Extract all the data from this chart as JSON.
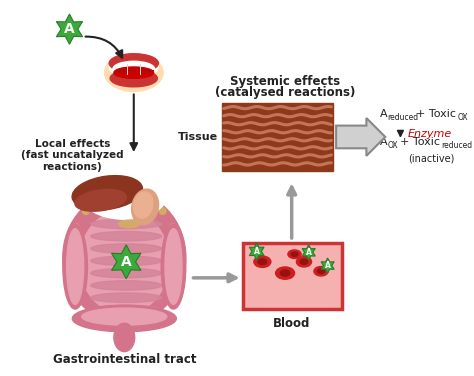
{
  "bg_color": "#ffffff",
  "figsize": [
    4.74,
    3.76
  ],
  "dpi": 100,
  "text_local_effects": "Local effects\n(fast uncatalyzed\nreactions)",
  "text_systemic_line1": "Systemic effects",
  "text_systemic_line2": "(catalysed reactions)",
  "text_tissue": "Tissue",
  "text_blood": "Blood",
  "text_gi": "Gastrointestinal tract",
  "text_a_label": "A",
  "eq_enzyme": "Enzyme",
  "eq_inactive": "(inactive)",
  "color_green_badge": "#3aaa3a",
  "color_green_dark": "#2a7a2a",
  "color_tissue_dark": "#8b3a1a",
  "color_tissue_mid": "#a84a2a",
  "color_tissue_light": "#c8725a",
  "color_tissue_stripe": "#b05040",
  "color_blood_bg": "#f5b0b0",
  "color_blood_border": "#cc3333",
  "color_rbc": "#cc2020",
  "color_gi_outer": "#d4748a",
  "color_gi_inner": "#e8a0b0",
  "color_gi_colon": "#c05070",
  "color_liver": "#7a3020",
  "color_stomach": "#d49070",
  "color_arrow_gray": "#999999",
  "color_arrow_dark": "#555555",
  "color_enzyme_red": "#cc0000",
  "color_text_dark": "#222222",
  "color_white": "#ffffff",
  "color_lip": "#cc3333",
  "color_lip_dark": "#991111",
  "color_skin": "#ffddb0",
  "color_teeth": "#f8f8f8",
  "color_gi_yellow": "#d4b060"
}
